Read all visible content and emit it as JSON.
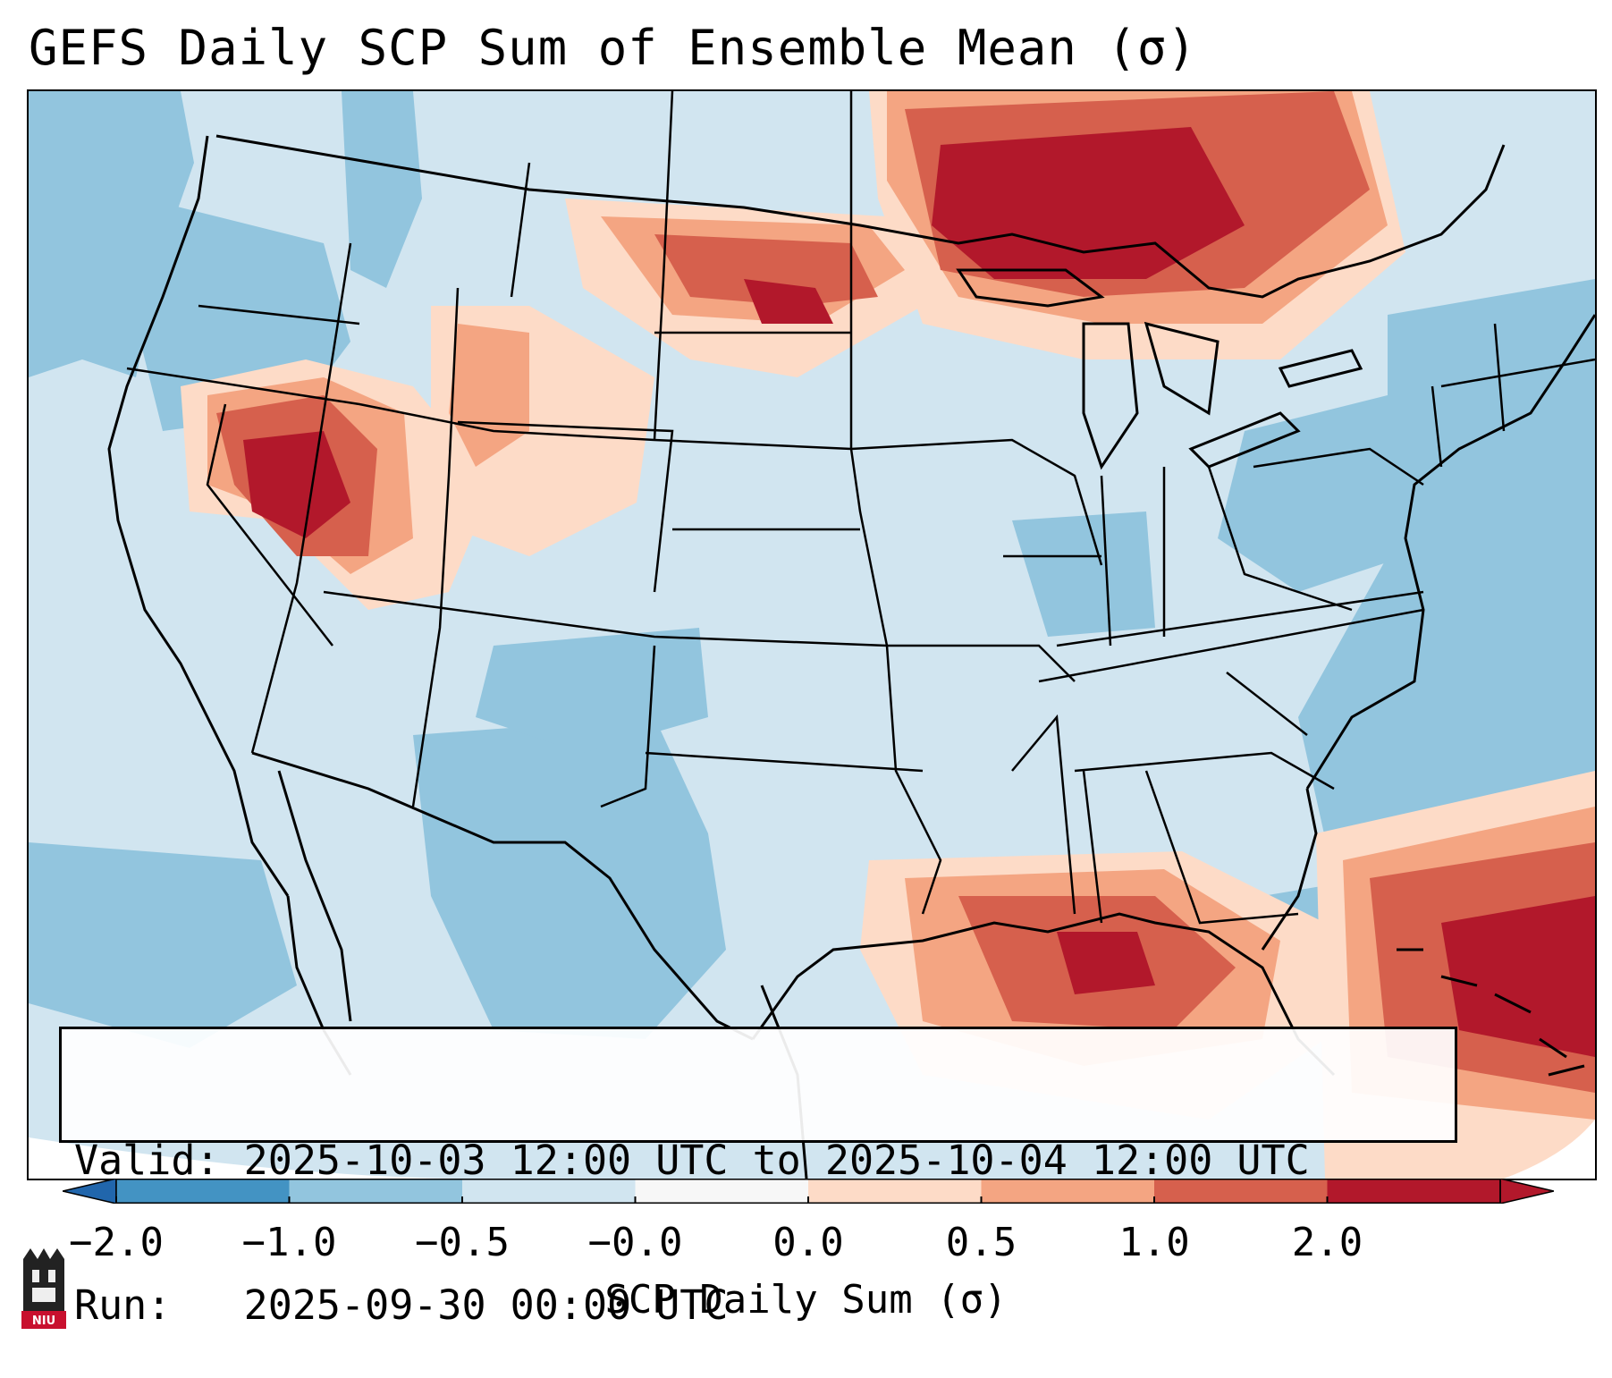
{
  "title": "GEFS Daily SCP Sum of Ensemble Mean (σ)",
  "info": {
    "valid_line": "Valid: 2025-10-03 12:00 UTC to 2025-10-04 12:00 UTC",
    "run_line": "Run:   2025-09-30 00:00 UTC"
  },
  "colorbar": {
    "label": "SCP Daily Sum (σ)",
    "ticks": [
      "−2.0",
      "−1.0",
      "−0.5",
      "−0.0",
      "0.0",
      "0.5",
      "1.0",
      "2.0"
    ],
    "colors": [
      "#4393c3",
      "#92c5de",
      "#d1e5f0",
      "#f7f7f7",
      "#fddbc7",
      "#f4a582",
      "#d6604d",
      "#b2182b"
    ],
    "extend_low_color": "#2166ac",
    "extend_high_color": "#b2182b"
  },
  "map": {
    "background_color": "#cfe3ef",
    "features": [
      "state-borders",
      "country-borders",
      "coastlines"
    ],
    "anomaly_regions": [
      {
        "name": "Northern Plains / Upper Midwest",
        "level": 2.0
      },
      {
        "name": "Nevada / Utah / Idaho",
        "level": 2.0
      },
      {
        "name": "Gulf of Mexico",
        "level": 1.5
      },
      {
        "name": "Western Atlantic / Bahamas",
        "level": 2.0
      },
      {
        "name": "Wyoming",
        "level": 0.5
      },
      {
        "name": "Pacific Northwest",
        "level": -1.0
      },
      {
        "name": "Southwest / Texas",
        "level": -1.0
      },
      {
        "name": "Western Atlantic offshore",
        "level": -1.0
      }
    ]
  },
  "logo": {
    "text": "NIU"
  }
}
